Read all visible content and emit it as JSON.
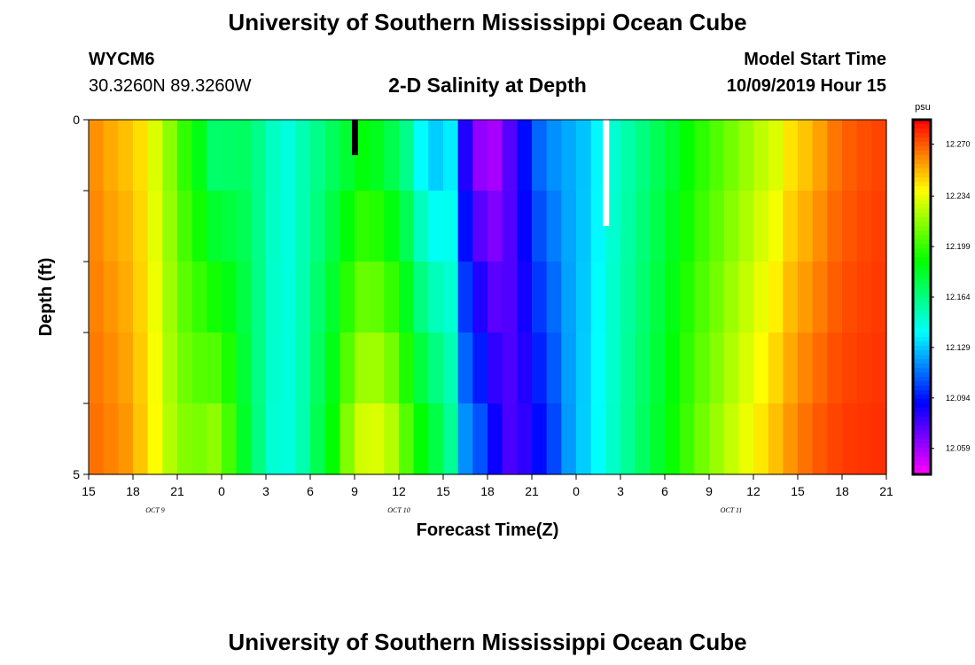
{
  "header": {
    "title": "University of Southern Mississippi Ocean Cube",
    "station": "WYCM6",
    "coords": "30.3260N 89.3260W",
    "subtitle": "2-D Salinity at Depth",
    "model_start_label": "Model Start Time",
    "model_start_value": "10/09/2019 Hour 15"
  },
  "footer": {
    "title": "University of Southern Mississippi Ocean Cube"
  },
  "chart_data": {
    "type": "heatmap",
    "title": "2-D Salinity at Depth",
    "xlabel": "Forecast Time(Z)",
    "ylabel": "Depth (ft)",
    "x_tick_labels": [
      "15",
      "18",
      "21",
      "0",
      "3",
      "6",
      "9",
      "12",
      "15",
      "18",
      "21",
      "0",
      "3",
      "6",
      "9",
      "12",
      "15",
      "18",
      "21"
    ],
    "date_labels": [
      {
        "label": "OCT 9",
        "tick_index": 1.5
      },
      {
        "label": "OCT 10",
        "tick_index": 7
      },
      {
        "label": "OCT 11",
        "tick_index": 14.5
      }
    ],
    "y_tick_labels": [
      "0",
      "5"
    ],
    "ylim": [
      0,
      5
    ],
    "hours": 54,
    "depth_rows": 5,
    "colorbar": {
      "unit": "psu",
      "tick_labels": [
        "12.270",
        "12.234",
        "12.199",
        "12.164",
        "12.129",
        "12.094",
        "12.059"
      ],
      "vmin": 12.041,
      "vmax": 12.287
    },
    "salinity_surface": [
      12.259,
      12.254,
      12.25,
      12.244,
      12.231,
      12.215,
      12.198,
      12.185,
      12.168,
      12.169,
      12.17,
      12.162,
      12.151,
      12.146,
      12.154,
      12.162,
      12.171,
      12.179,
      12.187,
      12.183,
      12.174,
      12.162,
      12.14,
      12.13,
      12.136,
      12.084,
      12.062,
      12.058,
      12.074,
      12.092,
      12.11,
      12.118,
      12.123,
      12.128,
      12.138,
      12.148,
      12.156,
      12.164,
      12.172,
      12.18,
      12.189,
      12.197,
      12.204,
      12.211,
      12.218,
      12.225,
      12.231,
      12.243,
      12.249,
      12.256,
      12.264,
      12.269,
      12.272,
      12.274
    ],
    "salinity_bottom": [
      12.265,
      12.262,
      12.258,
      12.249,
      12.238,
      12.223,
      12.214,
      12.212,
      12.216,
      12.202,
      12.181,
      12.164,
      12.148,
      12.146,
      12.155,
      12.173,
      12.189,
      12.213,
      12.229,
      12.231,
      12.223,
      12.205,
      12.188,
      12.175,
      12.16,
      12.118,
      12.106,
      12.088,
      12.076,
      12.081,
      12.092,
      12.104,
      12.12,
      12.13,
      12.14,
      12.15,
      12.16,
      12.17,
      12.18,
      12.19,
      12.2,
      12.21,
      12.218,
      12.226,
      12.234,
      12.242,
      12.25,
      12.258,
      12.265,
      12.27,
      12.274,
      12.276,
      12.277,
      12.278
    ],
    "evening_profile_hours": {
      "oct10_21z": 20,
      "oct11_00z": 21
    },
    "rising_sea_level_drift_hours": {
      "start": 24,
      "end": 54
    },
    "missing_markers": [
      {
        "hour": 18,
        "depth_to": 0.5,
        "color": "#000000"
      },
      {
        "hour": 35,
        "depth_to": 1.5,
        "color": "#ffffff"
      }
    ]
  }
}
